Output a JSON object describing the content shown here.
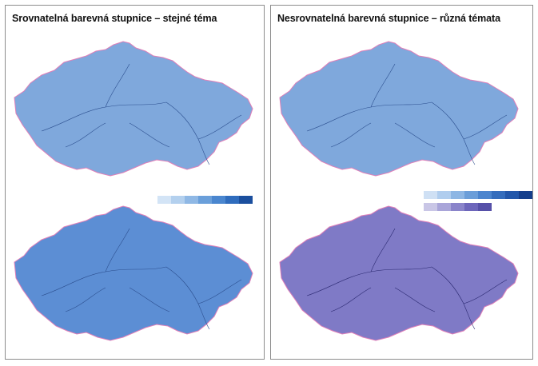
{
  "panels": {
    "left": {
      "title": "Srovnatelná barevná stupnice – stejné téma"
    },
    "right": {
      "title": "Nesrovnatelná barevná stupnice – různá témata"
    }
  },
  "legends": {
    "left_blue": [
      "#d3e4f6",
      "#b3d0ee",
      "#8fb8e5",
      "#6a9fda",
      "#4a86cf",
      "#2f6cbd",
      "#1b4f9e"
    ],
    "right_blue": [
      "#cfe0f4",
      "#b0cdee",
      "#8db6e4",
      "#6b9ed9",
      "#4c85ce",
      "#346dbd",
      "#2257aa",
      "#153f8c"
    ],
    "right_purple": [
      "#c9c6e6",
      "#a9a5d9",
      "#8a84ca",
      "#6d66bb",
      "#5650a8"
    ]
  },
  "maps": {
    "top_blue": {
      "fill": "#7fa8dc",
      "edge": "#3d6fb8"
    },
    "bottom_blue": {
      "fill": "#5c8ed4",
      "edge": "#2f62b0"
    },
    "purple": {
      "fill": "#7f7ac6",
      "edge": "#4a43a0"
    }
  }
}
